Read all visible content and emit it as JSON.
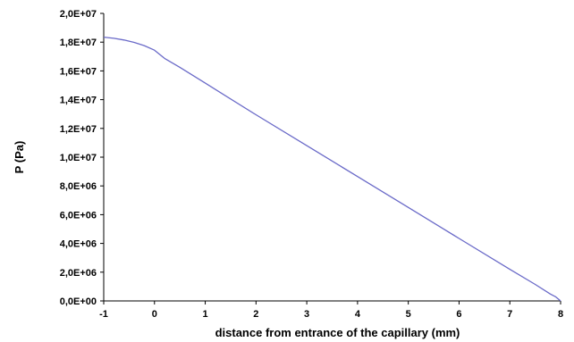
{
  "chart_data": {
    "type": "line",
    "title": "",
    "xlabel": "distance  from entrance of the capillary (mm)",
    "ylabel": "P (Pa)",
    "xlim": [
      -1,
      8
    ],
    "ylim": [
      0,
      20000000
    ],
    "x_ticks": [
      -1,
      0,
      1,
      2,
      3,
      4,
      5,
      6,
      7,
      8
    ],
    "x_tick_labels": [
      "-1",
      "0",
      "1",
      "2",
      "3",
      "4",
      "5",
      "6",
      "7",
      "8"
    ],
    "y_ticks": [
      0,
      2000000,
      4000000,
      6000000,
      8000000,
      10000000,
      12000000,
      14000000,
      16000000,
      18000000,
      20000000
    ],
    "y_tick_labels": [
      "0,0E+00",
      "2,0E+06",
      "4,0E+06",
      "6,0E+06",
      "8,0E+06",
      "1,0E+07",
      "1,2E+07",
      "1,4E+07",
      "1,6E+07",
      "1,8E+07",
      "2,0E+07"
    ],
    "grid": false,
    "legend": "none",
    "series": [
      {
        "color": "#6a6ac8",
        "x": [
          -1,
          -0.8,
          -0.6,
          -0.4,
          -0.2,
          0,
          0.1,
          0.2,
          0.5,
          1,
          2,
          3,
          4,
          5,
          6,
          7,
          7.5,
          7.8,
          7.9,
          8
        ],
        "y": [
          18350000,
          18270000,
          18150000,
          17980000,
          17760000,
          17440000,
          17150000,
          16870000,
          16250000,
          15150000,
          12950000,
          10800000,
          8650000,
          6500000,
          4350000,
          2200000,
          1150000,
          480000,
          290000,
          0
        ]
      }
    ]
  }
}
